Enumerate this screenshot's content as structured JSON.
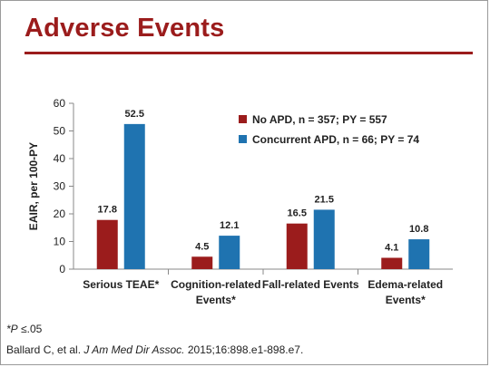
{
  "slide": {
    "title": "Adverse Events",
    "footnote_prefix": "*",
    "footnote_p": "P",
    "footnote_rest": " ≤.05",
    "citation_authors": "Ballard C, et al. ",
    "citation_journal": "J Am Med Dir Assoc.",
    "citation_rest": " 2015;16:898.e1-898.e7."
  },
  "colors": {
    "title": "#9b1c1c",
    "series_no_apd": "#9b1c1c",
    "series_concurrent_apd": "#1f73b0"
  },
  "chart_data": {
    "type": "bar",
    "ylabel": "EAIR, per 100-PY",
    "ylim": [
      0,
      60
    ],
    "yticks": [
      0,
      10,
      20,
      30,
      40,
      50,
      60
    ],
    "categories": [
      [
        "Serious TEAE*"
      ],
      [
        "Cognition-related",
        "Events*"
      ],
      [
        "Fall-related Events"
      ],
      [
        "Edema-related",
        "Events*"
      ]
    ],
    "series": [
      {
        "name": "No APD, n = 357; PY = 557",
        "values": [
          17.8,
          4.5,
          16.5,
          4.1
        ],
        "labels": [
          "17.8",
          "4.5",
          "16.5",
          "4.1"
        ]
      },
      {
        "name": "Concurrent APD, n = 66; PY = 74",
        "values": [
          52.5,
          12.1,
          21.5,
          10.8
        ],
        "labels": [
          "52.5",
          "12.1",
          "21.5",
          "10.8"
        ]
      }
    ],
    "legend": "top-right",
    "grid": false
  }
}
